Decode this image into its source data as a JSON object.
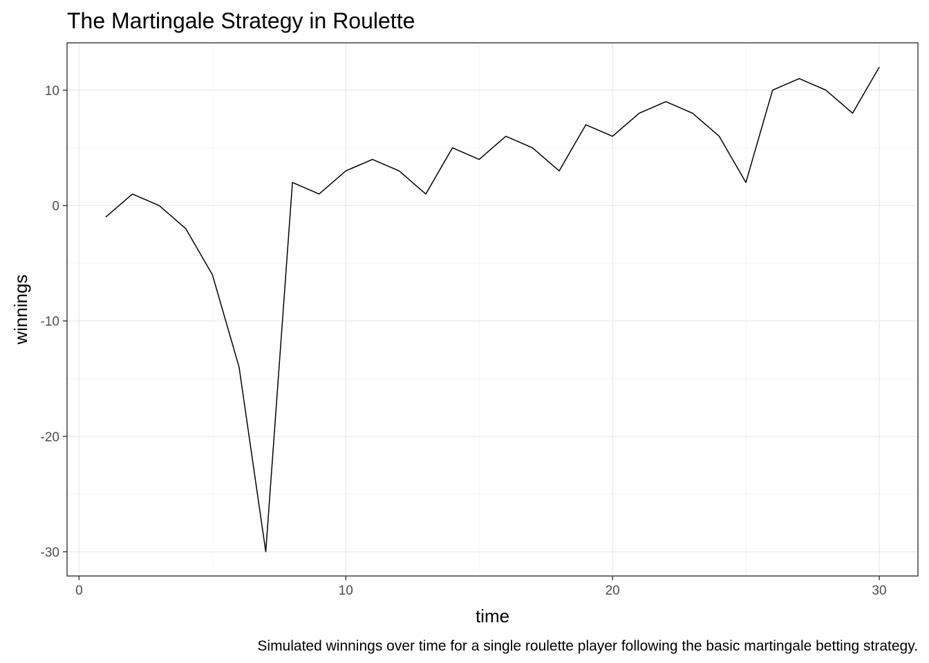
{
  "chart_data": {
    "type": "line",
    "title": "The Martingale Strategy in Roulette",
    "xlabel": "time",
    "ylabel": "winnings",
    "caption": "Simulated winnings over time for a single roulette player following the basic martingale betting strategy.",
    "xlim": [
      -0.45,
      31.45
    ],
    "ylim": [
      -32.1,
      14.1
    ],
    "x_ticks": [
      0,
      10,
      20,
      30
    ],
    "y_ticks": [
      -30,
      -20,
      -10,
      0,
      10
    ],
    "x_tick_labels": [
      "0",
      "10",
      "20",
      "30"
    ],
    "y_tick_labels": [
      "-30",
      "-20",
      "-10",
      "0",
      "10"
    ],
    "x_minor_ticks": [
      5,
      15,
      25
    ],
    "y_minor_ticks": [
      -25,
      -15,
      -5,
      5
    ],
    "grid": true,
    "legend": "none",
    "line_color": "#000000",
    "series": [
      {
        "x": [
          1,
          2,
          3,
          4,
          5,
          6,
          7,
          8,
          9,
          10,
          11,
          12,
          13,
          14,
          15,
          16,
          17,
          18,
          19,
          20,
          21,
          22,
          23,
          24,
          25,
          26,
          27,
          28,
          29,
          30
        ],
        "values": [
          -1,
          1,
          0,
          -2,
          -6,
          -14,
          -30,
          2,
          1,
          3,
          4,
          3,
          1,
          5,
          4,
          6,
          5,
          3,
          7,
          6,
          8,
          9,
          8,
          6,
          2,
          10,
          11,
          10,
          8,
          12
        ]
      }
    ]
  }
}
